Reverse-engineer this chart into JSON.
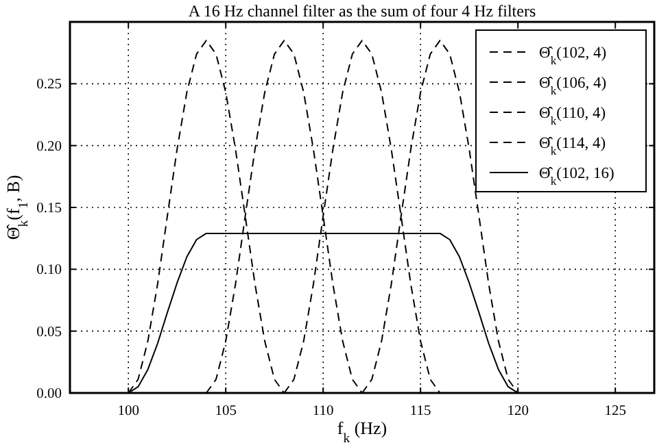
{
  "chart_data": {
    "type": "line",
    "title": "A 16 Hz channel filter as the sum of four 4 Hz filters",
    "xlabel": "f$_{k}$ (Hz)",
    "ylabel": "Θ̂$_{k}$(f$_{1}$, B)",
    "xlim": [
      97,
      127
    ],
    "xticks": [
      100,
      105,
      110,
      115,
      120,
      125
    ],
    "ylim": [
      0,
      0.3
    ],
    "yticks": [
      {
        "value": 0,
        "label": "0.00"
      },
      {
        "value": 0.05,
        "label": "0.05"
      },
      {
        "value": 0.1,
        "label": "0.10"
      },
      {
        "value": 0.15,
        "label": "0.15"
      },
      {
        "value": 0.2,
        "label": "0.20"
      },
      {
        "value": 0.25,
        "label": "0.25"
      }
    ],
    "grid": true,
    "legend": "top right",
    "series": [
      {
        "name": "Θ̂$_{k}$(102, 4)",
        "color": "#000000",
        "line_style": "dashed",
        "x": [
          100,
          100.5,
          101,
          101.5,
          102,
          102.5,
          103,
          103.5,
          104,
          104.5,
          105,
          105.5,
          106,
          106.5,
          107,
          107.5,
          108
        ],
        "values": [
          0,
          0.011,
          0.042,
          0.088,
          0.143,
          0.197,
          0.243,
          0.274,
          0.285,
          0.274,
          0.243,
          0.197,
          0.143,
          0.088,
          0.042,
          0.011,
          0
        ]
      },
      {
        "name": "Θ̂$_{k}$(106, 4)",
        "color": "#000000",
        "line_style": "dashed",
        "x": [
          104,
          104.5,
          105,
          105.5,
          106,
          106.5,
          107,
          107.5,
          108,
          108.5,
          109,
          109.5,
          110,
          110.5,
          111,
          111.5,
          112
        ],
        "values": [
          0,
          0.011,
          0.042,
          0.088,
          0.143,
          0.197,
          0.243,
          0.274,
          0.285,
          0.274,
          0.243,
          0.197,
          0.143,
          0.088,
          0.042,
          0.011,
          0
        ]
      },
      {
        "name": "Θ̂$_{k}$(110, 4)",
        "color": "#000000",
        "line_style": "dashed",
        "x": [
          108,
          108.5,
          109,
          109.5,
          110,
          110.5,
          111,
          111.5,
          112,
          112.5,
          113,
          113.5,
          114,
          114.5,
          115,
          115.5,
          116
        ],
        "values": [
          0,
          0.011,
          0.042,
          0.088,
          0.143,
          0.197,
          0.243,
          0.274,
          0.285,
          0.274,
          0.243,
          0.197,
          0.143,
          0.088,
          0.042,
          0.011,
          0
        ]
      },
      {
        "name": "Θ̂$_{k}$(114, 4)",
        "color": "#000000",
        "line_style": "dashed",
        "x": [
          112,
          112.5,
          113,
          113.5,
          114,
          114.5,
          115,
          115.5,
          116,
          116.5,
          117,
          117.5,
          118,
          118.5,
          119,
          119.5,
          120
        ],
        "values": [
          0,
          0.011,
          0.042,
          0.088,
          0.143,
          0.197,
          0.243,
          0.274,
          0.285,
          0.274,
          0.243,
          0.197,
          0.143,
          0.088,
          0.042,
          0.011,
          0
        ]
      },
      {
        "name": "Θ̂$_{k}$(102, 16)",
        "color": "#000000",
        "line_style": "solid",
        "x": [
          100,
          100.5,
          101,
          101.5,
          102,
          102.5,
          103,
          103.5,
          104,
          110,
          116,
          116.5,
          117,
          117.5,
          118,
          118.5,
          119,
          119.5,
          120
        ],
        "values": [
          0,
          0.005,
          0.019,
          0.04,
          0.065,
          0.089,
          0.11,
          0.124,
          0.129,
          0.129,
          0.129,
          0.124,
          0.11,
          0.089,
          0.065,
          0.04,
          0.019,
          0.005,
          0
        ]
      }
    ]
  }
}
